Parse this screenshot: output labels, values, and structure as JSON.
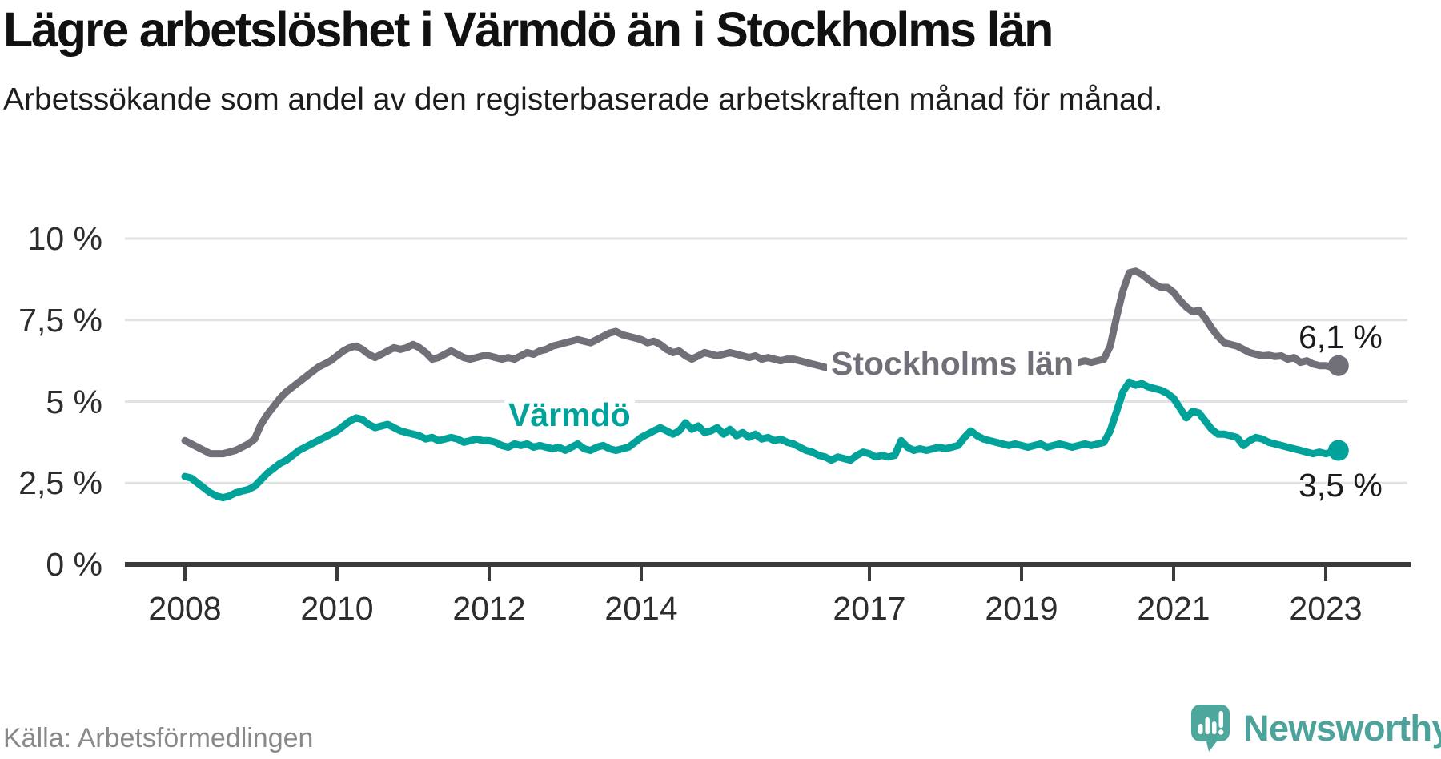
{
  "header": {
    "title": "Lägre arbetslöshet i Värmdö än i Stockholms län",
    "subtitle": "Arbetssökande som andel av den registerbaserade arbetskraften månad för månad."
  },
  "footer": {
    "source": "Källa: Arbetsförmedlingen",
    "brand_name": "Newsworthy"
  },
  "colors": {
    "stockholm_line": "#716F78",
    "varmdo_line": "#00A29A",
    "gridline": "#E2E2E2",
    "axis": "#3B3B3B",
    "tick_text": "#2d2d2d",
    "end_label_text": "#1b1b1b",
    "brand_teal": "#4BA39B"
  },
  "chart_data": {
    "type": "line",
    "title": "Lägre arbetslöshet i Värmdö än i Stockholms län",
    "subtitle": "Arbetssökande som andel av den registerbaserade arbetskraften månad för månad.",
    "unit": "%",
    "x_start_year": 2008,
    "x_interval": "monthly",
    "x_end_label_period": "mars 2023",
    "ylim": [
      0,
      10
    ],
    "grid": true,
    "legend_position": "inline-labels",
    "y_ticks": [
      {
        "value": 0,
        "label": "0 %"
      },
      {
        "value": 2.5,
        "label": "2,5 %"
      },
      {
        "value": 5,
        "label": "5 %"
      },
      {
        "value": 7.5,
        "label": "7,5 %"
      },
      {
        "value": 10,
        "label": "10 %"
      }
    ],
    "x_ticks": [
      {
        "year": 2008,
        "label": "2008"
      },
      {
        "year": 2010,
        "label": "2010"
      },
      {
        "year": 2012,
        "label": "2012"
      },
      {
        "year": 2014,
        "label": "2014"
      },
      {
        "year": 2017,
        "label": "2017"
      },
      {
        "year": 2019,
        "label": "2019"
      },
      {
        "year": 2021,
        "label": "2021"
      },
      {
        "year": 2023,
        "label": "2023"
      }
    ],
    "series": [
      {
        "name": "Stockholms län",
        "color": "#716F78",
        "end_label": "6,1 %",
        "end_value": 6.1,
        "values": [
          3.8,
          3.7,
          3.6,
          3.5,
          3.4,
          3.4,
          3.4,
          3.45,
          3.5,
          3.6,
          3.7,
          3.85,
          4.3,
          4.6,
          4.85,
          5.1,
          5.3,
          5.45,
          5.6,
          5.75,
          5.9,
          6.05,
          6.15,
          6.25,
          6.4,
          6.55,
          6.65,
          6.7,
          6.6,
          6.45,
          6.35,
          6.45,
          6.55,
          6.65,
          6.6,
          6.65,
          6.75,
          6.65,
          6.5,
          6.3,
          6.35,
          6.45,
          6.55,
          6.45,
          6.35,
          6.3,
          6.35,
          6.4,
          6.4,
          6.35,
          6.3,
          6.35,
          6.3,
          6.4,
          6.5,
          6.45,
          6.55,
          6.6,
          6.7,
          6.75,
          6.8,
          6.85,
          6.9,
          6.85,
          6.8,
          6.9,
          7.0,
          7.1,
          7.15,
          7.05,
          7.0,
          6.95,
          6.9,
          6.8,
          6.85,
          6.75,
          6.6,
          6.5,
          6.55,
          6.4,
          6.3,
          6.4,
          6.5,
          6.45,
          6.4,
          6.45,
          6.5,
          6.45,
          6.4,
          6.35,
          6.4,
          6.3,
          6.35,
          6.3,
          6.25,
          6.3,
          6.3,
          6.25,
          6.2,
          6.15,
          6.1,
          6.05,
          6.0,
          6.05,
          6.1,
          6.15,
          6.1,
          6.05,
          6.1,
          6.15,
          6.2,
          6.15,
          6.1,
          6.05,
          6.1,
          6.15,
          6.1,
          6.05,
          6.0,
          6.05,
          6.1,
          6.05,
          6.0,
          5.95,
          6.0,
          6.05,
          6.1,
          6.15,
          6.1,
          6.05,
          6.1,
          6.15,
          6.2,
          6.15,
          6.1,
          6.15,
          6.2,
          6.25,
          6.3,
          6.25,
          6.2,
          6.2,
          6.25,
          6.2,
          6.25,
          6.3,
          6.7,
          7.6,
          8.4,
          8.95,
          9.0,
          8.9,
          8.75,
          8.6,
          8.5,
          8.5,
          8.35,
          8.1,
          7.9,
          7.75,
          7.8,
          7.55,
          7.25,
          7.0,
          6.8,
          6.75,
          6.7,
          6.6,
          6.5,
          6.45,
          6.4,
          6.42,
          6.38,
          6.4,
          6.3,
          6.35,
          6.2,
          6.25,
          6.15,
          6.1,
          6.1,
          6.05,
          6.1
        ]
      },
      {
        "name": "Värmdö",
        "color": "#00A29A",
        "end_label": "3,5 %",
        "end_value": 3.5,
        "values": [
          2.7,
          2.65,
          2.5,
          2.35,
          2.2,
          2.1,
          2.05,
          2.1,
          2.2,
          2.25,
          2.3,
          2.4,
          2.6,
          2.8,
          2.95,
          3.1,
          3.2,
          3.35,
          3.5,
          3.6,
          3.7,
          3.8,
          3.9,
          4.0,
          4.1,
          4.25,
          4.4,
          4.5,
          4.45,
          4.3,
          4.2,
          4.25,
          4.3,
          4.2,
          4.1,
          4.05,
          4.0,
          3.95,
          3.85,
          3.9,
          3.8,
          3.85,
          3.9,
          3.85,
          3.75,
          3.8,
          3.85,
          3.8,
          3.8,
          3.75,
          3.65,
          3.6,
          3.7,
          3.65,
          3.7,
          3.6,
          3.65,
          3.6,
          3.55,
          3.6,
          3.5,
          3.6,
          3.7,
          3.55,
          3.5,
          3.6,
          3.65,
          3.55,
          3.5,
          3.55,
          3.6,
          3.75,
          3.9,
          4.0,
          4.1,
          4.2,
          4.1,
          4.0,
          4.1,
          4.35,
          4.15,
          4.25,
          4.05,
          4.1,
          4.2,
          4.0,
          4.15,
          3.95,
          4.05,
          3.9,
          4.0,
          3.85,
          3.9,
          3.8,
          3.85,
          3.75,
          3.7,
          3.6,
          3.5,
          3.45,
          3.35,
          3.3,
          3.2,
          3.3,
          3.25,
          3.2,
          3.35,
          3.45,
          3.4,
          3.3,
          3.35,
          3.3,
          3.35,
          3.8,
          3.6,
          3.5,
          3.55,
          3.5,
          3.55,
          3.6,
          3.55,
          3.6,
          3.65,
          3.9,
          4.1,
          3.95,
          3.85,
          3.8,
          3.75,
          3.7,
          3.65,
          3.7,
          3.65,
          3.6,
          3.65,
          3.7,
          3.6,
          3.65,
          3.7,
          3.65,
          3.6,
          3.65,
          3.7,
          3.65,
          3.7,
          3.75,
          4.1,
          4.7,
          5.3,
          5.6,
          5.5,
          5.55,
          5.45,
          5.4,
          5.35,
          5.25,
          5.1,
          4.8,
          4.5,
          4.7,
          4.65,
          4.4,
          4.15,
          4.0,
          4.0,
          3.95,
          3.9,
          3.65,
          3.8,
          3.9,
          3.85,
          3.75,
          3.7,
          3.65,
          3.6,
          3.55,
          3.5,
          3.45,
          3.4,
          3.45,
          3.4,
          3.45,
          3.5
        ]
      }
    ]
  }
}
